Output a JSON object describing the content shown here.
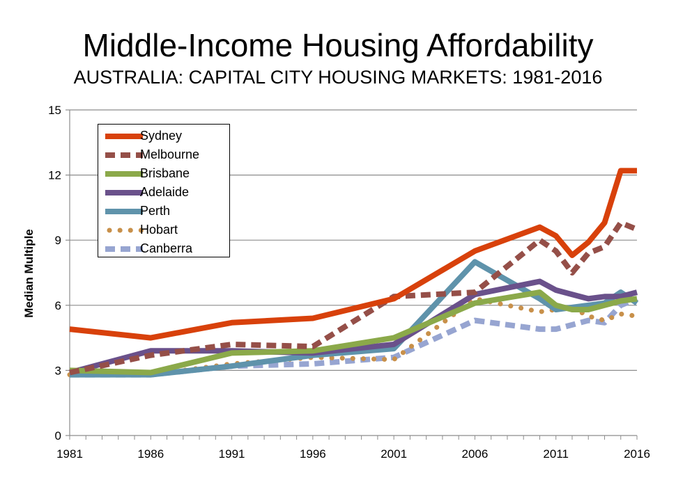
{
  "chart_data": {
    "type": "line",
    "title": "Middle-Income Housing Affordability",
    "subtitle": "AUSTRALIA: CAPITAL CITY HOUSING MARKETS: 1981-2016",
    "xlabel": "",
    "ylabel": "Median Multiple",
    "xlim": [
      1981,
      2016
    ],
    "ylim": [
      0,
      15
    ],
    "x_ticks": [
      "1981",
      "1986",
      "1991",
      "1996",
      "2001",
      "2006",
      "2011",
      "2016"
    ],
    "y_ticks": [
      "0",
      "3",
      "6",
      "9",
      "12",
      "15"
    ],
    "grid": "horizontal",
    "legend_position": "top-left",
    "series": [
      {
        "name": "Sydney",
        "color": "#d8410b",
        "dash": "solid",
        "points": [
          [
            1981,
            4.9
          ],
          [
            1986,
            4.5
          ],
          [
            1991,
            5.2
          ],
          [
            1996,
            5.4
          ],
          [
            2001,
            6.3
          ],
          [
            2006,
            8.5
          ],
          [
            2010,
            9.6
          ],
          [
            2011,
            9.2
          ],
          [
            2012,
            8.3
          ],
          [
            2013,
            8.9
          ],
          [
            2014,
            9.8
          ],
          [
            2015,
            12.2
          ],
          [
            2016,
            12.2
          ]
        ]
      },
      {
        "name": "Melbourne",
        "color": "#954f48",
        "dash": "dash",
        "points": [
          [
            1981,
            2.9
          ],
          [
            1986,
            3.7
          ],
          [
            1991,
            4.2
          ],
          [
            1996,
            4.1
          ],
          [
            2001,
            6.4
          ],
          [
            2006,
            6.6
          ],
          [
            2010,
            9.0
          ],
          [
            2011,
            8.5
          ],
          [
            2012,
            7.5
          ],
          [
            2013,
            8.4
          ],
          [
            2014,
            8.7
          ],
          [
            2015,
            9.8
          ],
          [
            2016,
            9.5
          ]
        ]
      },
      {
        "name": "Brisbane",
        "color": "#8ba94a",
        "dash": "solid",
        "points": [
          [
            1981,
            3.0
          ],
          [
            1986,
            2.9
          ],
          [
            1991,
            3.8
          ],
          [
            1996,
            3.9
          ],
          [
            2001,
            4.5
          ],
          [
            2006,
            6.1
          ],
          [
            2010,
            6.6
          ],
          [
            2011,
            6.0
          ],
          [
            2012,
            5.8
          ],
          [
            2013,
            5.8
          ],
          [
            2014,
            6.0
          ],
          [
            2015,
            6.2
          ],
          [
            2016,
            6.3
          ]
        ]
      },
      {
        "name": "Adelaide",
        "color": "#6a518b",
        "dash": "solid",
        "points": [
          [
            1981,
            2.9
          ],
          [
            1986,
            3.9
          ],
          [
            1991,
            3.9
          ],
          [
            1996,
            3.8
          ],
          [
            2001,
            4.2
          ],
          [
            2006,
            6.5
          ],
          [
            2010,
            7.1
          ],
          [
            2011,
            6.7
          ],
          [
            2012,
            6.5
          ],
          [
            2013,
            6.3
          ],
          [
            2014,
            6.4
          ],
          [
            2015,
            6.4
          ],
          [
            2016,
            6.6
          ]
        ]
      },
      {
        "name": "Perth",
        "color": "#5f93ab",
        "dash": "solid",
        "points": [
          [
            1981,
            2.8
          ],
          [
            1986,
            2.8
          ],
          [
            1991,
            3.2
          ],
          [
            1996,
            3.7
          ],
          [
            2001,
            4.0
          ],
          [
            2006,
            8.0
          ],
          [
            2010,
            6.3
          ],
          [
            2011,
            5.8
          ],
          [
            2012,
            5.9
          ],
          [
            2013,
            6.0
          ],
          [
            2014,
            6.1
          ],
          [
            2015,
            6.6
          ],
          [
            2016,
            6.1
          ]
        ]
      },
      {
        "name": "Hobart",
        "color": "#c8904a",
        "dash": "dot",
        "points": [
          [
            1981,
            2.8
          ],
          [
            1986,
            2.8
          ],
          [
            1991,
            3.3
          ],
          [
            1996,
            3.6
          ],
          [
            2001,
            3.5
          ],
          [
            2006,
            6.3
          ],
          [
            2010,
            5.7
          ],
          [
            2011,
            5.8
          ],
          [
            2012,
            5.9
          ],
          [
            2013,
            5.5
          ],
          [
            2014,
            5.3
          ],
          [
            2015,
            5.6
          ],
          [
            2016,
            5.5
          ]
        ]
      },
      {
        "name": "Canberra",
        "color": "#97a5d1",
        "dash": "dash",
        "points": [
          [
            1981,
            2.8
          ],
          [
            1986,
            2.8
          ],
          [
            1991,
            3.2
          ],
          [
            1996,
            3.3
          ],
          [
            2001,
            3.6
          ],
          [
            2006,
            5.3
          ],
          [
            2010,
            4.9
          ],
          [
            2011,
            4.9
          ],
          [
            2012,
            5.1
          ],
          [
            2013,
            5.3
          ],
          [
            2014,
            5.2
          ],
          [
            2015,
            6.0
          ],
          [
            2016,
            6.3
          ]
        ]
      }
    ]
  }
}
